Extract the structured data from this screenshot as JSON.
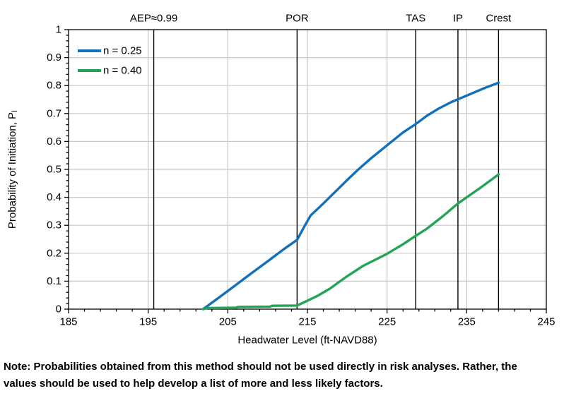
{
  "chart_data": {
    "type": "line",
    "title": "",
    "xlabel": "Headwater Level (ft-NAVD88)",
    "ylabel": {
      "text": "Probability of Initiation, P",
      "subscript": "I"
    },
    "xlim": [
      185,
      245
    ],
    "ylim": [
      0,
      1
    ],
    "x_major_step": 10,
    "x_minor_step": 2,
    "y_major_step": 0.1,
    "y_minor_step": 0.02,
    "grid": true,
    "legend_position": "top-left-inside",
    "x_tick_labels": [
      "185",
      "195",
      "205",
      "215",
      "225",
      "235",
      "245"
    ],
    "y_tick_labels": [
      "0",
      "0.1",
      "0.2",
      "0.3",
      "0.4",
      "0.5",
      "0.6",
      "0.7",
      "0.8",
      "0.9",
      "1"
    ],
    "colors": {
      "grid": "#C8C8C8",
      "axis": "#000000",
      "reference_line": "#000000",
      "background": "#FFFFFF"
    },
    "reference_lines": [
      {
        "label": "AEP≈0.99",
        "x": 195.7
      },
      {
        "label": "POR",
        "x": 213.7
      },
      {
        "label": "TAS",
        "x": 228.6
      },
      {
        "label": "IP",
        "x": 233.9
      },
      {
        "label": "Crest",
        "x": 239.0
      }
    ],
    "series": [
      {
        "name": "n = 0.25",
        "color": "#1170BC",
        "points": [
          [
            201.9,
            0
          ],
          [
            204,
            0.044
          ],
          [
            206,
            0.086
          ],
          [
            208,
            0.129
          ],
          [
            210,
            0.171
          ],
          [
            212,
            0.214
          ],
          [
            213.7,
            0.248
          ],
          [
            214.7,
            0.3
          ],
          [
            215.4,
            0.335
          ],
          [
            217,
            0.378
          ],
          [
            218.5,
            0.42
          ],
          [
            220,
            0.462
          ],
          [
            221.4,
            0.5
          ],
          [
            223,
            0.54
          ],
          [
            225.6,
            0.6
          ],
          [
            227,
            0.632
          ],
          [
            228.6,
            0.662
          ],
          [
            230,
            0.692
          ],
          [
            231.5,
            0.718
          ],
          [
            233,
            0.74
          ],
          [
            234,
            0.752
          ],
          [
            236,
            0.776
          ],
          [
            237.5,
            0.794
          ],
          [
            239,
            0.81
          ]
        ]
      },
      {
        "name": "n = 0.40",
        "color": "#22A553",
        "points": [
          [
            201.9,
            0
          ],
          [
            202.5,
            0.004
          ],
          [
            206,
            0.005
          ],
          [
            206.3,
            0.008
          ],
          [
            210.3,
            0.009
          ],
          [
            210.6,
            0.012
          ],
          [
            213.7,
            0.013
          ],
          [
            215,
            0.03
          ],
          [
            216.3,
            0.048
          ],
          [
            217.8,
            0.073
          ],
          [
            220,
            0.118
          ],
          [
            222,
            0.155
          ],
          [
            225,
            0.198
          ],
          [
            227,
            0.232
          ],
          [
            228.6,
            0.262
          ],
          [
            230,
            0.288
          ],
          [
            232,
            0.332
          ],
          [
            233.9,
            0.378
          ],
          [
            235,
            0.4
          ],
          [
            237,
            0.44
          ],
          [
            239,
            0.482
          ]
        ]
      }
    ]
  },
  "note": {
    "line1": "Note: Probabilities obtained from this method should not be used directly in risk analyses. Rather, the",
    "line2": "values should be used to help develop a list of more and less likely factors."
  }
}
